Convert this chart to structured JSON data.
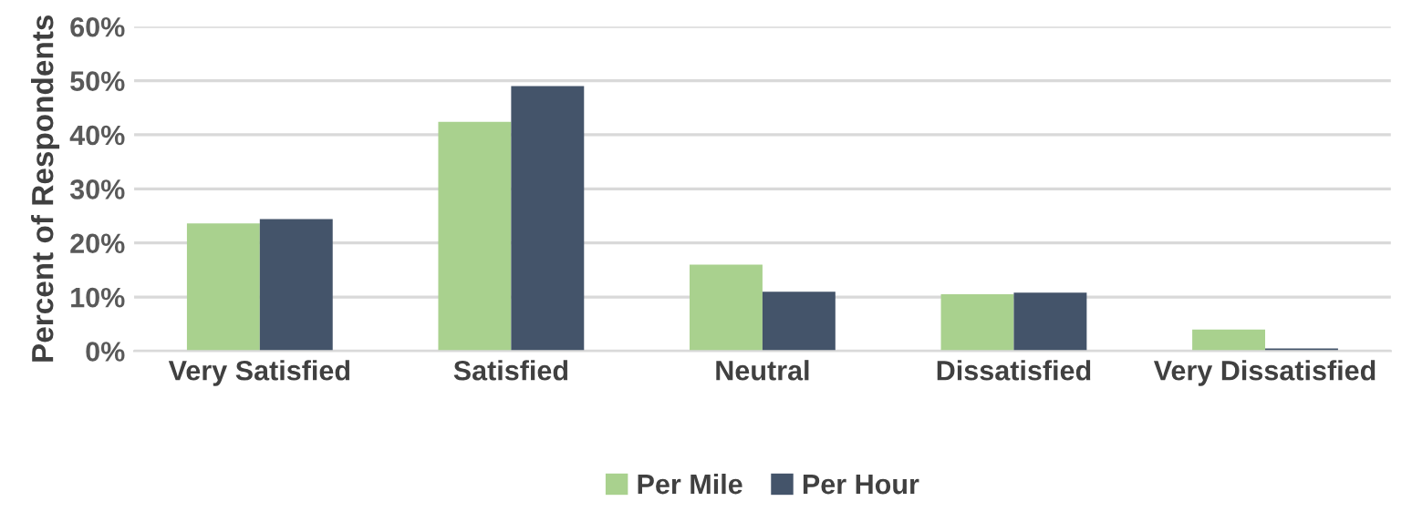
{
  "chart_data": {
    "type": "bar",
    "ylabel": "Percent of Respondents",
    "categories": [
      "Very Satisfied",
      "Satisfied",
      "Neutral",
      "Dissatisfied",
      "Very Dissatisfied"
    ],
    "series": [
      {
        "name": "Per Mile",
        "color": "#a9d18e",
        "values": [
          23.6,
          42.4,
          16,
          10.5,
          4
        ]
      },
      {
        "name": "Per Hour",
        "color": "#44546a",
        "values": [
          24.4,
          49,
          11,
          10.8,
          0.5
        ]
      }
    ],
    "ylim": [
      0,
      60
    ],
    "yticks": [
      {
        "value": 0,
        "label": "0%"
      },
      {
        "value": 10,
        "label": "10%"
      },
      {
        "value": 20,
        "label": "20%"
      },
      {
        "value": 30,
        "label": "30%"
      },
      {
        "value": 40,
        "label": "40%"
      },
      {
        "value": 50,
        "label": "50%"
      },
      {
        "value": 60,
        "label": "60%"
      }
    ],
    "grid": "y",
    "legend": "bottom"
  }
}
